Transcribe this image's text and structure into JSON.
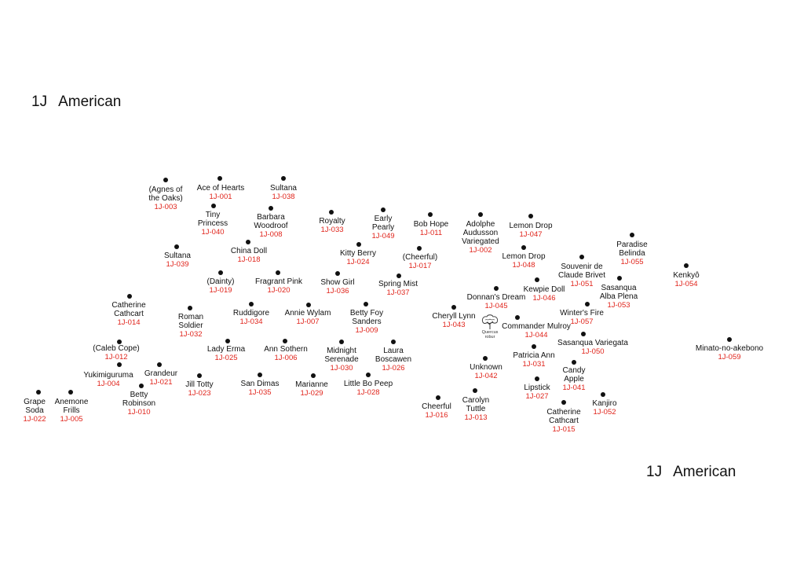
{
  "title": {
    "number": "1J",
    "text": "American"
  },
  "landmark": {
    "icon": "tree-icon",
    "label_line1": "Quercus",
    "label_line2": "robur"
  },
  "colors": {
    "code": "#e0241b",
    "name": "#111111",
    "dot": "#111111"
  },
  "plants": [
    {
      "name": "(Agnes of\nthe Oaks)",
      "code": "1J-003"
    },
    {
      "name": "Ace of Hearts",
      "code": "1J-001"
    },
    {
      "name": "Sultana",
      "code": "1J-038"
    },
    {
      "name": "Tiny\nPrincess",
      "code": "1J-040"
    },
    {
      "name": "Barbara\nWoodroof",
      "code": "1J-008"
    },
    {
      "name": "Royalty",
      "code": "1J-033"
    },
    {
      "name": "Early\nPearly",
      "code": "1J-049"
    },
    {
      "name": "Bob Hope",
      "code": "1J-011"
    },
    {
      "name": "Adolphe\nAudusson\nVariegated",
      "code": "1J-002"
    },
    {
      "name": "Lemon Drop",
      "code": "1J-047"
    },
    {
      "name": "Paradise\nBelinda",
      "code": "1J-055"
    },
    {
      "name": "Sultana",
      "code": "1J-039"
    },
    {
      "name": "China Doll",
      "code": "1J-018"
    },
    {
      "name": "Kitty Berry",
      "code": "1J-024"
    },
    {
      "name": "(Cheerful)",
      "code": "1J-017"
    },
    {
      "name": "Lemon Drop",
      "code": "1J-048"
    },
    {
      "name": "Souvenir de\nClaude Brivet",
      "code": "1J-051"
    },
    {
      "name": "Kenkyô",
      "code": "1J-054"
    },
    {
      "name": "(Dainty)",
      "code": "1J-019"
    },
    {
      "name": "Fragrant Pink",
      "code": "1J-020"
    },
    {
      "name": "Show Girl",
      "code": "1J-036"
    },
    {
      "name": "Spring Mist",
      "code": "1J-037"
    },
    {
      "name": "Sasanqua\nAlba Plena",
      "code": "1J-053"
    },
    {
      "name": "Kewpie Doll",
      "code": "1J-046"
    },
    {
      "name": "Donnan's Dream",
      "code": "1J-045"
    },
    {
      "name": "Catherine\nCathcart",
      "code": "1J-014"
    },
    {
      "name": "Roman\nSoldier",
      "code": "1J-032"
    },
    {
      "name": "Ruddigore",
      "code": "1J-034"
    },
    {
      "name": "Annie Wylam",
      "code": "1J-007"
    },
    {
      "name": "Betty Foy\nSanders",
      "code": "1J-009"
    },
    {
      "name": "Cheryll Lynn",
      "code": "1J-043"
    },
    {
      "name": "Winter's Fire",
      "code": "1J-057"
    },
    {
      "name": "Commander Mulroy",
      "code": "1J-044"
    },
    {
      "name": "(Caleb Cope)",
      "code": "1J-012"
    },
    {
      "name": "Lady Erma",
      "code": "1J-025"
    },
    {
      "name": "Ann Sothern",
      "code": "1J-006"
    },
    {
      "name": "Midnight\nSerenade",
      "code": "1J-030"
    },
    {
      "name": "Laura\nBoscawen",
      "code": "1J-026"
    },
    {
      "name": "Sasanqua Variegata",
      "code": "1J-050"
    },
    {
      "name": "Patricia Ann",
      "code": "1J-031"
    },
    {
      "name": "Minato-no-akebono",
      "code": "1J-059"
    },
    {
      "name": "Grandeur",
      "code": "1J-021"
    },
    {
      "name": "Yukimiguruma",
      "code": "1J-004"
    },
    {
      "name": "Unknown",
      "code": "1J-042"
    },
    {
      "name": "Candy\nApple",
      "code": "1J-041"
    },
    {
      "name": "Jill Totty",
      "code": "1J-023"
    },
    {
      "name": "San Dimas",
      "code": "1J-035"
    },
    {
      "name": "Marianne",
      "code": "1J-029"
    },
    {
      "name": "Little Bo Peep",
      "code": "1J-028"
    },
    {
      "name": "Betty\nRobinson",
      "code": "1J-010"
    },
    {
      "name": "Grape\nSoda",
      "code": "1J-022"
    },
    {
      "name": "Anemone\nFrills",
      "code": "1J-005"
    },
    {
      "name": "Lipstick",
      "code": "1J-027"
    },
    {
      "name": "Kanjiro",
      "code": "1J-052"
    },
    {
      "name": "Cheerful",
      "code": "1J-016"
    },
    {
      "name": "Carolyn\nTuttle",
      "code": "1J-013"
    },
    {
      "name": "Catherine\nCathcart",
      "code": "1J-015"
    }
  ]
}
